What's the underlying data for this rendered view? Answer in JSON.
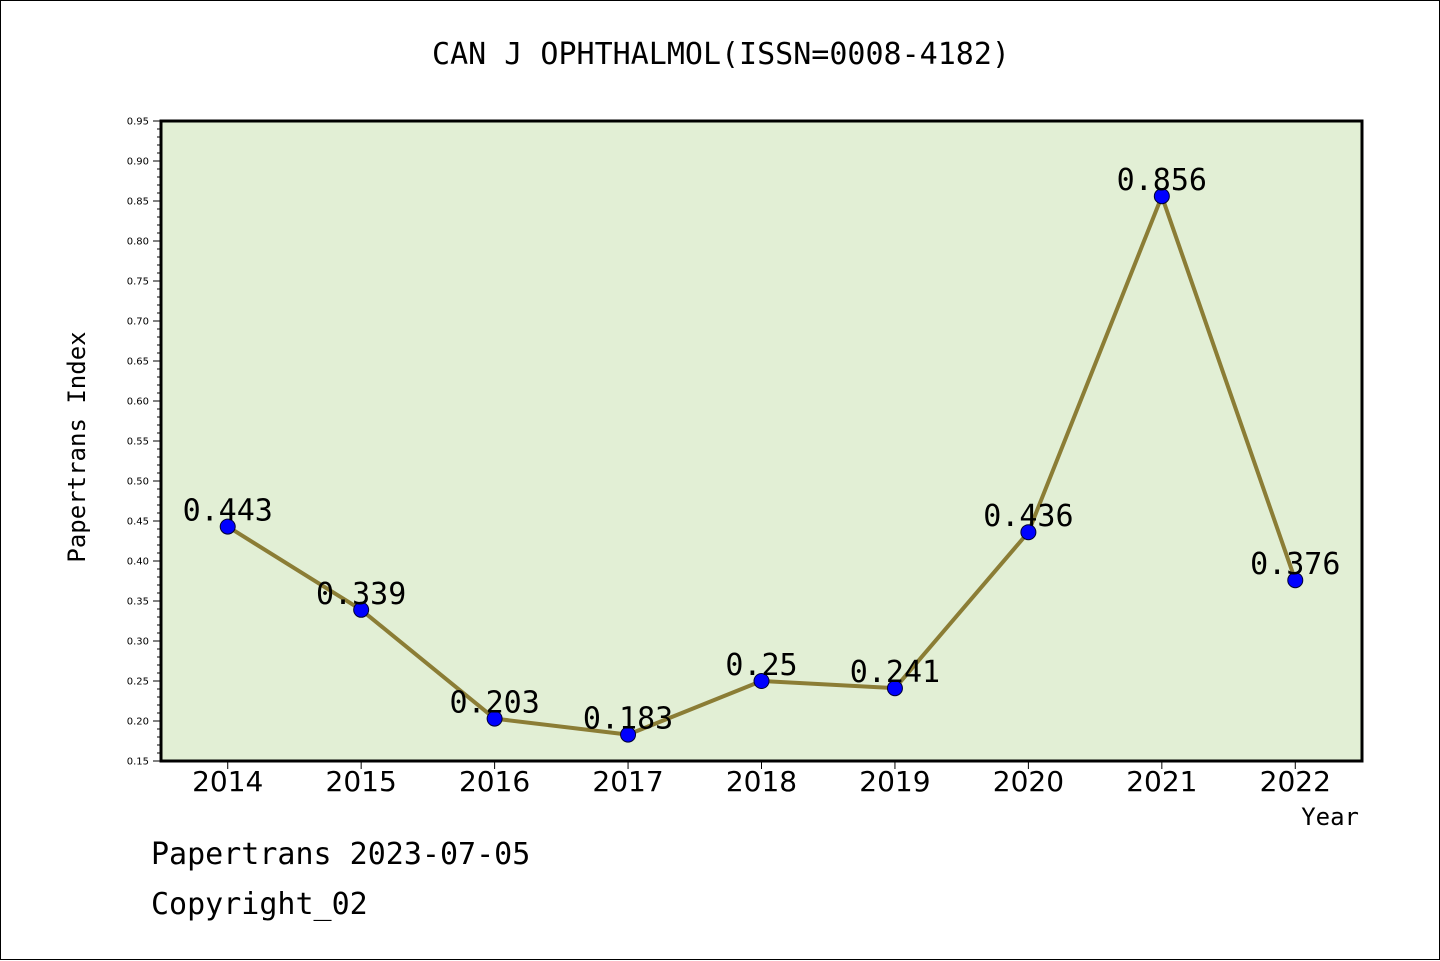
{
  "title": "CAN J OPHTHALMOL(ISSN=0008-4182)",
  "footer": {
    "line1": "Papertrans 2023-07-05",
    "line2": "Copyright_02"
  },
  "colors": {
    "plot_bg": "#e2efd5",
    "line": "#8b7d35",
    "marker": "#0000ff",
    "axis": "#000000"
  },
  "chart_data": {
    "type": "line",
    "title": "CAN J OPHTHALMOL(ISSN=0008-4182)",
    "xlabel": "Year",
    "ylabel": "Papertrans Index",
    "categories": [
      "2014",
      "2015",
      "2016",
      "2017",
      "2018",
      "2019",
      "2020",
      "2021",
      "2022"
    ],
    "values": [
      0.443,
      0.339,
      0.203,
      0.183,
      0.25,
      0.241,
      0.436,
      0.856,
      0.376
    ],
    "data_labels": [
      "0.443",
      "0.339",
      "0.203",
      "0.183",
      "0.25",
      "0.241",
      "0.436",
      "0.856",
      "0.376"
    ],
    "ylim": [
      0.15,
      0.95
    ],
    "yticks": [
      "0.15",
      "0.20",
      "0.25",
      "0.30",
      "0.35",
      "0.40",
      "0.45",
      "0.50",
      "0.55",
      "0.60",
      "0.65",
      "0.70",
      "0.75",
      "0.80",
      "0.85",
      "0.90",
      "0.95"
    ],
    "grid": false,
    "legend": "none"
  }
}
